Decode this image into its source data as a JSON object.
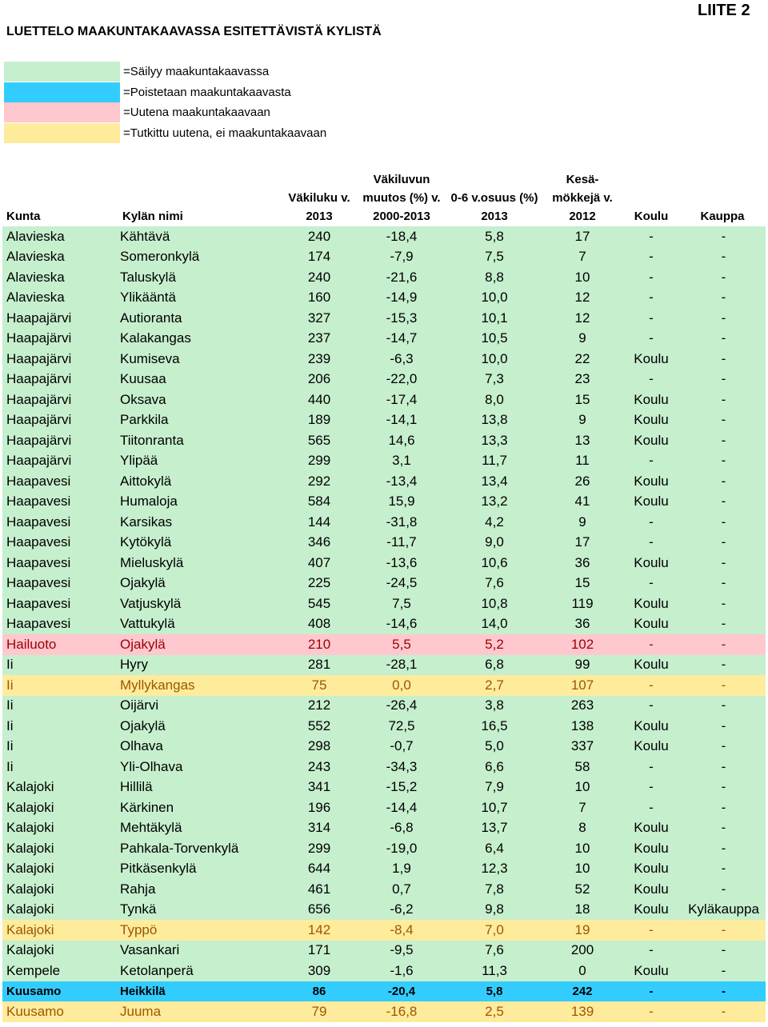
{
  "appendix_label": "LIITE 2",
  "title": "LUETTELO MAAKUNTAKAAVASSA ESITETTÄVISTÄ KYLISTÄ",
  "legend": [
    {
      "status": "keep",
      "color": "#c6efce",
      "label": "=Säilyy maakuntakaavassa"
    },
    {
      "status": "removed",
      "color": "#33ccff",
      "label": "=Poistetaan maakuntakaavasta"
    },
    {
      "status": "new",
      "color": "#ffc7ce",
      "label": "=Uutena maakuntakaavaan"
    },
    {
      "status": "studied",
      "color": "#ffeb9c",
      "label": "=Tutkittu uutena, ei maakuntakaavaan"
    }
  ],
  "headers": {
    "kunta": "Kunta",
    "kyla": "Kylän nimi",
    "vakiluku": "Väkiluku v.\n2013",
    "muutos": "Väkiluvun\nmuutos (%) v.\n2000-2013",
    "osuus": "0-6 v.osuus (%)\n2013",
    "mokit": "Kesä-\nmökkejä v.\n2012",
    "koulu": "Koulu",
    "kauppa": "Kauppa"
  },
  "rows": [
    {
      "status": "keep",
      "kunta": "Alavieska",
      "kyla": "Kähtävä",
      "vakiluku": "240",
      "muutos": "-18,4",
      "osuus": "5,8",
      "mokit": "17",
      "koulu": "-",
      "kauppa": "-"
    },
    {
      "status": "keep",
      "kunta": "Alavieska",
      "kyla": "Someronkylä",
      "vakiluku": "174",
      "muutos": "-7,9",
      "osuus": "7,5",
      "mokit": "7",
      "koulu": "-",
      "kauppa": "-"
    },
    {
      "status": "keep",
      "kunta": "Alavieska",
      "kyla": "Taluskylä",
      "vakiluku": "240",
      "muutos": "-21,6",
      "osuus": "8,8",
      "mokit": "10",
      "koulu": "-",
      "kauppa": "-"
    },
    {
      "status": "keep",
      "kunta": "Alavieska",
      "kyla": "Ylikääntä",
      "vakiluku": "160",
      "muutos": "-14,9",
      "osuus": "10,0",
      "mokit": "12",
      "koulu": "-",
      "kauppa": "-"
    },
    {
      "status": "keep",
      "kunta": "Haapajärvi",
      "kyla": "Autioranta",
      "vakiluku": "327",
      "muutos": "-15,3",
      "osuus": "10,1",
      "mokit": "12",
      "koulu": "-",
      "kauppa": "-"
    },
    {
      "status": "keep",
      "kunta": "Haapajärvi",
      "kyla": "Kalakangas",
      "vakiluku": "237",
      "muutos": "-14,7",
      "osuus": "10,5",
      "mokit": "9",
      "koulu": "-",
      "kauppa": "-"
    },
    {
      "status": "keep",
      "kunta": "Haapajärvi",
      "kyla": "Kumiseva",
      "vakiluku": "239",
      "muutos": "-6,3",
      "osuus": "10,0",
      "mokit": "22",
      "koulu": "Koulu",
      "kauppa": "-"
    },
    {
      "status": "keep",
      "kunta": "Haapajärvi",
      "kyla": "Kuusaa",
      "vakiluku": "206",
      "muutos": "-22,0",
      "osuus": "7,3",
      "mokit": "23",
      "koulu": "-",
      "kauppa": "-"
    },
    {
      "status": "keep",
      "kunta": "Haapajärvi",
      "kyla": "Oksava",
      "vakiluku": "440",
      "muutos": "-17,4",
      "osuus": "8,0",
      "mokit": "15",
      "koulu": "Koulu",
      "kauppa": "-"
    },
    {
      "status": "keep",
      "kunta": "Haapajärvi",
      "kyla": "Parkkila",
      "vakiluku": "189",
      "muutos": "-14,1",
      "osuus": "13,8",
      "mokit": "9",
      "koulu": "Koulu",
      "kauppa": "-"
    },
    {
      "status": "keep",
      "kunta": "Haapajärvi",
      "kyla": "Tiitonranta",
      "vakiluku": "565",
      "muutos": "14,6",
      "osuus": "13,3",
      "mokit": "13",
      "koulu": "Koulu",
      "kauppa": "-"
    },
    {
      "status": "keep",
      "kunta": "Haapajärvi",
      "kyla": "Ylipää",
      "vakiluku": "299",
      "muutos": "3,1",
      "osuus": "11,7",
      "mokit": "11",
      "koulu": "-",
      "kauppa": "-"
    },
    {
      "status": "keep",
      "kunta": "Haapavesi",
      "kyla": "Aittokylä",
      "vakiluku": "292",
      "muutos": "-13,4",
      "osuus": "13,4",
      "mokit": "26",
      "koulu": "Koulu",
      "kauppa": "-"
    },
    {
      "status": "keep",
      "kunta": "Haapavesi",
      "kyla": "Humaloja",
      "vakiluku": "584",
      "muutos": "15,9",
      "osuus": "13,2",
      "mokit": "41",
      "koulu": "Koulu",
      "kauppa": "-"
    },
    {
      "status": "keep",
      "kunta": "Haapavesi",
      "kyla": "Karsikas",
      "vakiluku": "144",
      "muutos": "-31,8",
      "osuus": "4,2",
      "mokit": "9",
      "koulu": "-",
      "kauppa": "-"
    },
    {
      "status": "keep",
      "kunta": "Haapavesi",
      "kyla": "Kytökylä",
      "vakiluku": "346",
      "muutos": "-11,7",
      "osuus": "9,0",
      "mokit": "17",
      "koulu": "-",
      "kauppa": "-"
    },
    {
      "status": "keep",
      "kunta": "Haapavesi",
      "kyla": "Mieluskylä",
      "vakiluku": "407",
      "muutos": "-13,6",
      "osuus": "10,6",
      "mokit": "36",
      "koulu": "Koulu",
      "kauppa": "-"
    },
    {
      "status": "keep",
      "kunta": "Haapavesi",
      "kyla": "Ojakylä",
      "vakiluku": "225",
      "muutos": "-24,5",
      "osuus": "7,6",
      "mokit": "15",
      "koulu": "-",
      "kauppa": "-"
    },
    {
      "status": "keep",
      "kunta": "Haapavesi",
      "kyla": "Vatjuskylä",
      "vakiluku": "545",
      "muutos": "7,5",
      "osuus": "10,8",
      "mokit": "119",
      "koulu": "Koulu",
      "kauppa": "-"
    },
    {
      "status": "keep",
      "kunta": "Haapavesi",
      "kyla": "Vattukylä",
      "vakiluku": "408",
      "muutos": "-14,6",
      "osuus": "14,0",
      "mokit": "36",
      "koulu": "Koulu",
      "kauppa": "-"
    },
    {
      "status": "new",
      "kunta": "Hailuoto",
      "kyla": "Ojakylä",
      "vakiluku": "210",
      "muutos": "5,5",
      "osuus": "5,2",
      "mokit": "102",
      "koulu": "-",
      "kauppa": "-"
    },
    {
      "status": "keep",
      "kunta": "Ii",
      "kyla": "Hyry",
      "vakiluku": "281",
      "muutos": "-28,1",
      "osuus": "6,8",
      "mokit": "99",
      "koulu": "Koulu",
      "kauppa": "-"
    },
    {
      "status": "studied",
      "kunta": "Ii",
      "kyla": "Myllykangas",
      "vakiluku": "75",
      "muutos": "0,0",
      "osuus": "2,7",
      "mokit": "107",
      "koulu": "-",
      "kauppa": "-"
    },
    {
      "status": "keep",
      "kunta": "Ii",
      "kyla": "Oijärvi",
      "vakiluku": "212",
      "muutos": "-26,4",
      "osuus": "3,8",
      "mokit": "263",
      "koulu": "-",
      "kauppa": "-"
    },
    {
      "status": "keep",
      "kunta": "Ii",
      "kyla": "Ojakylä",
      "vakiluku": "552",
      "muutos": "72,5",
      "osuus": "16,5",
      "mokit": "138",
      "koulu": "Koulu",
      "kauppa": "-"
    },
    {
      "status": "keep",
      "kunta": "Ii",
      "kyla": "Olhava",
      "vakiluku": "298",
      "muutos": "-0,7",
      "osuus": "5,0",
      "mokit": "337",
      "koulu": "Koulu",
      "kauppa": "-"
    },
    {
      "status": "keep",
      "kunta": "Ii",
      "kyla": "Yli-Olhava",
      "vakiluku": "243",
      "muutos": "-34,3",
      "osuus": "6,6",
      "mokit": "58",
      "koulu": "-",
      "kauppa": "-"
    },
    {
      "status": "keep",
      "kunta": "Kalajoki",
      "kyla": "Hillilä",
      "vakiluku": "341",
      "muutos": "-15,2",
      "osuus": "7,9",
      "mokit": "10",
      "koulu": "-",
      "kauppa": "-"
    },
    {
      "status": "keep",
      "kunta": "Kalajoki",
      "kyla": "Kärkinen",
      "vakiluku": "196",
      "muutos": "-14,4",
      "osuus": "10,7",
      "mokit": "7",
      "koulu": "-",
      "kauppa": "-"
    },
    {
      "status": "keep",
      "kunta": "Kalajoki",
      "kyla": "Mehtäkylä",
      "vakiluku": "314",
      "muutos": "-6,8",
      "osuus": "13,7",
      "mokit": "8",
      "koulu": "Koulu",
      "kauppa": "-"
    },
    {
      "status": "keep",
      "kunta": "Kalajoki",
      "kyla": "Pahkala-Torvenkylä",
      "vakiluku": "299",
      "muutos": "-19,0",
      "osuus": "6,4",
      "mokit": "10",
      "koulu": "Koulu",
      "kauppa": "-"
    },
    {
      "status": "keep",
      "kunta": "Kalajoki",
      "kyla": "Pitkäsenkylä",
      "vakiluku": "644",
      "muutos": "1,9",
      "osuus": "12,3",
      "mokit": "10",
      "koulu": "Koulu",
      "kauppa": "-"
    },
    {
      "status": "keep",
      "kunta": "Kalajoki",
      "kyla": "Rahja",
      "vakiluku": "461",
      "muutos": "0,7",
      "osuus": "7,8",
      "mokit": "52",
      "koulu": "Koulu",
      "kauppa": "-"
    },
    {
      "status": "keep",
      "kunta": "Kalajoki",
      "kyla": "Tynkä",
      "vakiluku": "656",
      "muutos": "-6,2",
      "osuus": "9,8",
      "mokit": "18",
      "koulu": "Koulu",
      "kauppa": "Kyläkauppa"
    },
    {
      "status": "studied",
      "kunta": "Kalajoki",
      "kyla": "Typpö",
      "vakiluku": "142",
      "muutos": "-8,4",
      "osuus": "7,0",
      "mokit": "19",
      "koulu": "-",
      "kauppa": "-"
    },
    {
      "status": "keep",
      "kunta": "Kalajoki",
      "kyla": "Vasankari",
      "vakiluku": "171",
      "muutos": "-9,5",
      "osuus": "7,6",
      "mokit": "200",
      "koulu": "-",
      "kauppa": "-"
    },
    {
      "status": "keep",
      "kunta": "Kempele",
      "kyla": "Ketolanperä",
      "vakiluku": "309",
      "muutos": "-1,6",
      "osuus": "11,3",
      "mokit": "0",
      "koulu": "Koulu",
      "kauppa": "-"
    },
    {
      "status": "removed",
      "kunta": "Kuusamo",
      "kyla": "Heikkilä",
      "vakiluku": "86",
      "muutos": "-20,4",
      "osuus": "5,8",
      "mokit": "242",
      "koulu": "-",
      "kauppa": "-"
    },
    {
      "status": "studied",
      "kunta": "Kuusamo",
      "kyla": "Juuma",
      "vakiluku": "79",
      "muutos": "-16,8",
      "osuus": "2,5",
      "mokit": "139",
      "koulu": "-",
      "kauppa": "-"
    }
  ]
}
